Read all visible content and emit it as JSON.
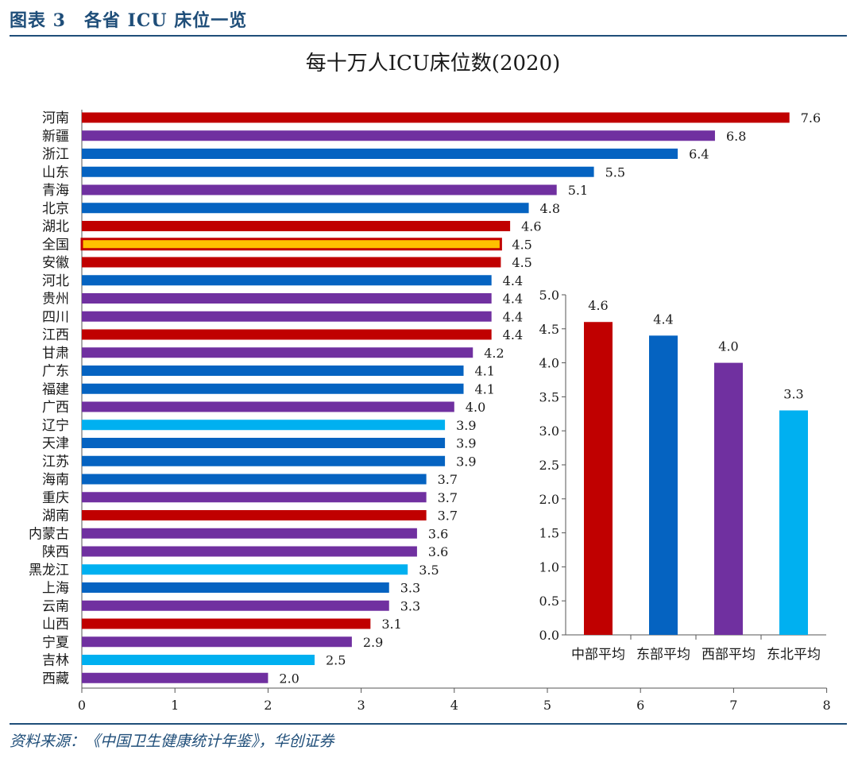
{
  "header": {
    "figure_label": "图表 3　各省 ICU 床位一览"
  },
  "source": {
    "text": "资料来源：《中国卫生健康统计年鉴》，华创证券"
  },
  "colors": {
    "central": "#c00000",
    "east": "#0563c1",
    "west": "#7030a0",
    "northeast": "#00b0f0",
    "national_fill": "#ffc000",
    "national_stroke": "#c00000"
  },
  "chart_data": [
    {
      "type": "bar",
      "orientation": "horizontal",
      "title": "每十万人ICU床位数(2020)",
      "xlim": [
        0,
        8
      ],
      "xticks": [
        "0",
        "1",
        "2",
        "3",
        "4",
        "5",
        "6",
        "7",
        "8"
      ],
      "categories": [
        "河南",
        "新疆",
        "浙江",
        "山东",
        "青海",
        "北京",
        "湖北",
        "全国",
        "安徽",
        "河北",
        "贵州",
        "四川",
        "江西",
        "甘肃",
        "广东",
        "福建",
        "广西",
        "辽宁",
        "天津",
        "江苏",
        "海南",
        "重庆",
        "湖南",
        "内蒙古",
        "陕西",
        "黑龙江",
        "上海",
        "云南",
        "山西",
        "宁夏",
        "吉林",
        "西藏"
      ],
      "values": [
        7.6,
        6.8,
        6.4,
        5.5,
        5.1,
        4.8,
        4.6,
        4.5,
        4.5,
        4.4,
        4.4,
        4.4,
        4.4,
        4.2,
        4.1,
        4.1,
        4.0,
        3.9,
        3.9,
        3.9,
        3.7,
        3.7,
        3.7,
        3.6,
        3.6,
        3.5,
        3.3,
        3.3,
        3.1,
        2.9,
        2.5,
        2.0
      ],
      "value_labels": [
        "7.6",
        "6.8",
        "6.4",
        "5.5",
        "5.1",
        "4.8",
        "4.6",
        "4.5",
        "4.5",
        "4.4",
        "4.4",
        "4.4",
        "4.4",
        "4.2",
        "4.1",
        "4.1",
        "4.0",
        "3.9",
        "3.9",
        "3.9",
        "3.7",
        "3.7",
        "3.7",
        "3.6",
        "3.6",
        "3.5",
        "3.3",
        "3.3",
        "3.1",
        "2.9",
        "2.5",
        "2.0"
      ],
      "region": [
        "central",
        "west",
        "east",
        "east",
        "west",
        "east",
        "central",
        "national",
        "central",
        "east",
        "west",
        "west",
        "central",
        "west",
        "east",
        "east",
        "west",
        "northeast",
        "east",
        "east",
        "east",
        "west",
        "central",
        "west",
        "west",
        "northeast",
        "east",
        "west",
        "central",
        "west",
        "northeast",
        "west"
      ]
    },
    {
      "type": "bar",
      "orientation": "vertical",
      "categories": [
        "中部平均",
        "东部平均",
        "西部平均",
        "东北平均"
      ],
      "values": [
        4.6,
        4.4,
        4.0,
        3.3
      ],
      "value_labels": [
        "4.6",
        "4.4",
        "4.0",
        "3.3"
      ],
      "region": [
        "central",
        "east",
        "west",
        "northeast"
      ],
      "ylim": [
        0,
        5
      ],
      "yticks": [
        "0.0",
        "0.5",
        "1.0",
        "1.5",
        "2.0",
        "2.5",
        "3.0",
        "3.5",
        "4.0",
        "4.5",
        "5.0"
      ]
    }
  ]
}
